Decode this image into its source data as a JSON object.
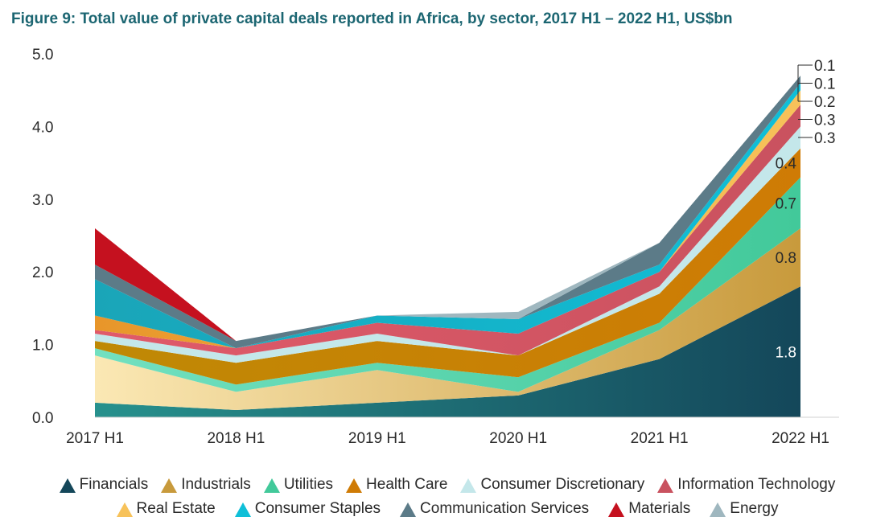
{
  "figure_title": "Figure 9: Total value of private capital deals reported in Africa, by sector, 2017 H1 – 2022 H1, US$bn",
  "chart_data": {
    "type": "area",
    "stacked": true,
    "categories": [
      "2017 H1",
      "2018 H1",
      "2019 H1",
      "2020 H1",
      "2021 H1",
      "2022 H1"
    ],
    "ylim": [
      0,
      5
    ],
    "yticks": [
      "0.0",
      "1.0",
      "2.0",
      "3.0",
      "4.0",
      "5.0"
    ],
    "grid": false,
    "legend_position": "bottom",
    "series": [
      {
        "name": "Financials",
        "values": [
          0.2,
          0.1,
          0.2,
          0.3,
          0.8,
          1.8
        ],
        "color": "#14475a",
        "color2": "#27918d"
      },
      {
        "name": "Industrials",
        "values": [
          0.65,
          0.25,
          0.45,
          0.05,
          0.4,
          0.8
        ],
        "color": "#c89a3c",
        "color2": "#fbe8b4"
      },
      {
        "name": "Utilities",
        "values": [
          0.1,
          0.1,
          0.1,
          0.2,
          0.1,
          0.7
        ],
        "color": "#42c99a",
        "color2": "#72e0c0"
      },
      {
        "name": "Health Care",
        "values": [
          0.1,
          0.3,
          0.3,
          0.3,
          0.4,
          0.4
        ],
        "color": "#cf7b05",
        "color2": "#bf8905"
      },
      {
        "name": "Consumer Discretionary",
        "values": [
          0.1,
          0.1,
          0.1,
          0.0,
          0.1,
          0.3
        ],
        "color": "#c4e7ea",
        "color2": "#c4e7ea"
      },
      {
        "name": "Information Technology",
        "values": [
          0.05,
          0.1,
          0.15,
          0.3,
          0.2,
          0.3
        ],
        "color": "#c9525f",
        "color2": "#e05a6a"
      },
      {
        "name": "Real Estate",
        "values": [
          0.2,
          0.0,
          0.0,
          0.0,
          0.0,
          0.2
        ],
        "color": "#f7c25a",
        "color2": "#e8962a"
      },
      {
        "name": "Consumer Staples",
        "values": [
          0.5,
          0.0,
          0.1,
          0.2,
          0.1,
          0.1
        ],
        "color": "#0fbfd8",
        "color2": "#1aa5b8"
      },
      {
        "name": "Communication Services",
        "values": [
          0.2,
          0.1,
          0.0,
          0.0,
          0.3,
          0.1
        ],
        "color": "#5c7b88",
        "color2": "#5c7b88"
      },
      {
        "name": "Materials",
        "values": [
          0.5,
          0.0,
          0.0,
          0.0,
          0.0,
          0.0
        ],
        "color": "#c5111f",
        "color2": "#c5111f"
      },
      {
        "name": "Energy",
        "values": [
          0.0,
          0.0,
          0.0,
          0.1,
          0.0,
          0.0
        ],
        "color": "#9fb7bf",
        "color2": "#9fb7bf"
      }
    ],
    "data_labels_inside": [
      {
        "series": "Financials",
        "text": "1.8"
      },
      {
        "series": "Industrials",
        "text": "0.8"
      },
      {
        "series": "Utilities",
        "text": "0.7"
      },
      {
        "series": "Health Care",
        "text": "0.4"
      }
    ],
    "data_labels_callout": [
      {
        "series": "Communication Services",
        "text": "0.1"
      },
      {
        "series": "Consumer Staples",
        "text": "0.1"
      },
      {
        "series": "Real Estate",
        "text": "0.2"
      },
      {
        "series": "Information Technology",
        "text": "0.3"
      },
      {
        "series": "Consumer Discretionary",
        "text": "0.3"
      }
    ],
    "legend_rows": [
      [
        "Financials",
        "Industrials",
        "Utilities",
        "Health Care",
        "Consumer Discretionary",
        "Information Technology"
      ],
      [
        "Real Estate",
        "Consumer Staples",
        "Communication Services",
        "Materials",
        "Energy"
      ]
    ]
  }
}
